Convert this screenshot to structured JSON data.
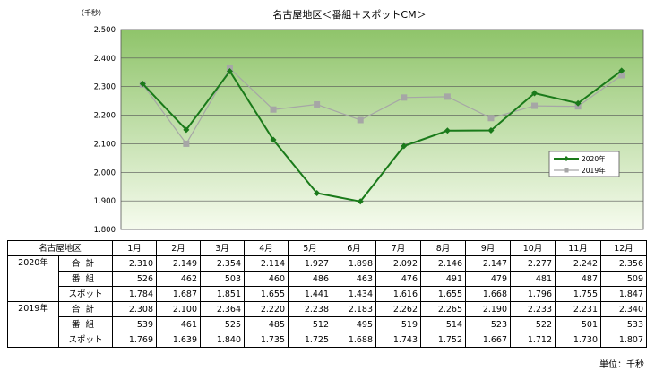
{
  "chart_data": {
    "type": "line",
    "title": "名古屋地区＜番組＋スポットCM＞",
    "unit_label": "（千秒）",
    "ylabel": "",
    "xlabel": "",
    "ylim": [
      1.8,
      2.5
    ],
    "yticks": [
      "2.500",
      "2.400",
      "2.300",
      "2.200",
      "2.100",
      "2.000",
      "1.900",
      "1.800"
    ],
    "grid": true,
    "legend_position": "right",
    "categories": [
      "1月",
      "2月",
      "3月",
      "4月",
      "5月",
      "6月",
      "7月",
      "8月",
      "9月",
      "10月",
      "11月",
      "12月"
    ],
    "series": [
      {
        "name": "2020年",
        "color": "#1a7a1a",
        "marker": "diamond",
        "values": [
          2.31,
          2.149,
          2.354,
          2.114,
          1.927,
          1.898,
          2.092,
          2.146,
          2.147,
          2.277,
          2.242,
          2.356
        ]
      },
      {
        "name": "2019年",
        "color": "#a6a6a6",
        "marker": "square",
        "values": [
          2.308,
          2.1,
          2.364,
          2.22,
          2.238,
          2.183,
          2.262,
          2.265,
          2.19,
          2.233,
          2.231,
          2.34
        ]
      }
    ]
  },
  "table": {
    "corner": "名古屋地区",
    "months": [
      "1月",
      "2月",
      "3月",
      "4月",
      "5月",
      "6月",
      "7月",
      "8月",
      "9月",
      "10月",
      "11月",
      "12月"
    ],
    "blocks": [
      {
        "year": "2020年",
        "rows": [
          {
            "label": "合計",
            "values": [
              "2.310",
              "2.149",
              "2.354",
              "2.114",
              "1.927",
              "1.898",
              "2.092",
              "2.146",
              "2.147",
              "2.277",
              "2.242",
              "2.356"
            ]
          },
          {
            "label": "番組",
            "values": [
              "526",
              "462",
              "503",
              "460",
              "486",
              "463",
              "476",
              "491",
              "479",
              "481",
              "487",
              "509"
            ]
          },
          {
            "label": "スポット",
            "values": [
              "1.784",
              "1.687",
              "1.851",
              "1.655",
              "1.441",
              "1.434",
              "1.616",
              "1.655",
              "1.668",
              "1.796",
              "1.755",
              "1.847"
            ]
          }
        ]
      },
      {
        "year": "2019年",
        "rows": [
          {
            "label": "合計",
            "values": [
              "2.308",
              "2.100",
              "2.364",
              "2.220",
              "2.238",
              "2.183",
              "2.262",
              "2.265",
              "2.190",
              "2.233",
              "2.231",
              "2.340"
            ]
          },
          {
            "label": "番組",
            "values": [
              "539",
              "461",
              "525",
              "485",
              "512",
              "495",
              "519",
              "514",
              "523",
              "522",
              "501",
              "533"
            ]
          },
          {
            "label": "スポット",
            "values": [
              "1.769",
              "1.639",
              "1.840",
              "1.735",
              "1.725",
              "1.688",
              "1.743",
              "1.752",
              "1.667",
              "1.712",
              "1.730",
              "1.807"
            ]
          }
        ]
      }
    ],
    "unit": "単位：千秒"
  }
}
